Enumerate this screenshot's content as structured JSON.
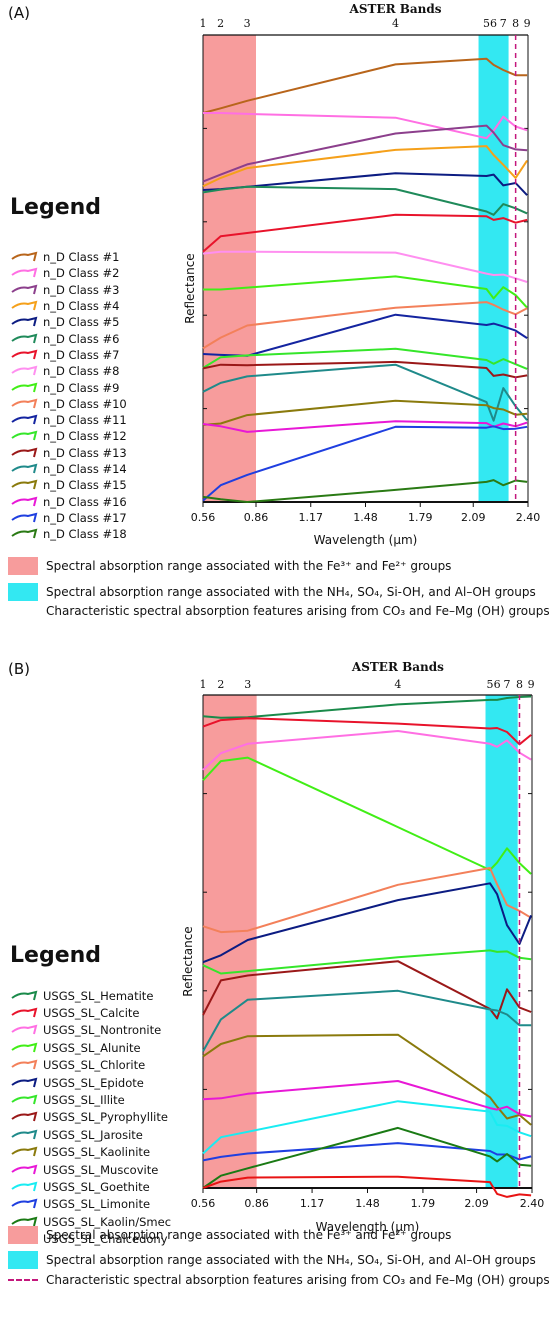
{
  "panels": [
    {
      "id": "A",
      "panel_label": "(A)",
      "legend_title": "Legend",
      "band_title": "ASTER Bands",
      "xlabel": "Wavelength (μm)",
      "ylabel": "Reflectance",
      "absorption_fe": "Spectral absorption range associated with the Fe³⁺ and Fe²⁺ groups",
      "absorption_nh4": "Spectral absorption range associated with the NH₄, SO₄, Si-OH, and Al–OH groups",
      "absorption_co3": "Characteristic spectral absorption features arising from CO₃ and Fe–Mg (OH) groups"
    },
    {
      "id": "B",
      "panel_label": "(B)",
      "legend_title": "Legend",
      "band_title": "ASTER Bands",
      "xlabel": "Wavelength (μm)",
      "ylabel": "Reflectance",
      "absorption_fe": "Spectral absorption range associated with the Fe³⁺ and Fe²⁺ groups",
      "absorption_nh4": "Spectral absorption range associated with the NH₄, SO₄, Si-OH, and Al–OH groups",
      "absorption_co3": "Characteristic spectral absorption features arising from CO₃ and Fe–Mg (OH) groups"
    }
  ],
  "chart_data": [
    {
      "type": "line",
      "title": "",
      "band_axis_title": "ASTER Bands",
      "xlabel": "Wavelength (μm)",
      "ylabel": "Reflectance",
      "x_ticks": [
        "0.56",
        "0.86",
        "1.17",
        "1.48",
        "1.79",
        "2.09",
        "2.40"
      ],
      "xlim": [
        0.56,
        2.4
      ],
      "ylim": [
        0,
        100
      ],
      "band_numbers": [
        "1",
        "2",
        "3",
        "4",
        "5",
        "6",
        "7",
        "8",
        "9"
      ],
      "band_centers": [
        0.56,
        0.66,
        0.81,
        1.65,
        2.165,
        2.205,
        2.26,
        2.33,
        2.395
      ],
      "fe_range": [
        0.56,
        0.86
      ],
      "nh4_range": [
        2.12,
        2.29
      ],
      "co3_line": 2.33,
      "series": [
        {
          "name": "n_D Class #1",
          "color": "#b8651b",
          "values": [
            83.3,
            84.3,
            85.9,
            93.7,
            94.9,
            93.6,
            92.5,
            91.4,
            91.4
          ]
        },
        {
          "name": "n_D Class #2",
          "color": "#ff6fe3",
          "values": [
            83.3,
            83.3,
            83.1,
            82.3,
            77.9,
            79.5,
            82.5,
            80.4,
            79.6
          ]
        },
        {
          "name": "n_D Class #3",
          "color": "#8c3f8c",
          "values": [
            68.6,
            70.1,
            72.3,
            78.9,
            80.6,
            79.1,
            76.4,
            75.5,
            75.3
          ]
        },
        {
          "name": "n_D Class #4",
          "color": "#f5a01a",
          "values": [
            67.6,
            69.4,
            71.5,
            75.4,
            76.2,
            74.3,
            72.2,
            69.4,
            73.1
          ]
        },
        {
          "name": "n_D Class #5",
          "color": "#0c1c82",
          "values": [
            66.8,
            67.0,
            67.5,
            70.4,
            69.8,
            70.1,
            67.8,
            68.3,
            65.7
          ]
        },
        {
          "name": "n_D Class #6",
          "color": "#1f8a5a",
          "values": [
            66.3,
            66.9,
            67.5,
            67.0,
            62.2,
            61.5,
            63.8,
            62.9,
            61.8
          ]
        },
        {
          "name": "n_D Class #7",
          "color": "#e8132b",
          "values": [
            53.6,
            56.9,
            57.6,
            61.5,
            61.2,
            60.4,
            60.8,
            59.8,
            60.4
          ]
        },
        {
          "name": "n_D Class #8",
          "color": "#ff8ff0",
          "values": [
            53.2,
            53.6,
            53.6,
            53.4,
            48.9,
            48.6,
            48.7,
            47.9,
            47.1
          ]
        },
        {
          "name": "n_D Class #9",
          "color": "#41ee16",
          "values": [
            45.5,
            45.5,
            45.9,
            48.3,
            45.6,
            43.6,
            46.0,
            44.3,
            41.6
          ]
        },
        {
          "name": "n_D Class #10",
          "color": "#f3805a",
          "values": [
            32.9,
            35.2,
            37.8,
            41.6,
            42.8,
            42.2,
            41.2,
            40.2,
            41.5
          ]
        },
        {
          "name": "n_D Class #11",
          "color": "#1424a0",
          "values": [
            31.7,
            31.5,
            31.3,
            40.1,
            37.9,
            38.2,
            37.6,
            36.7,
            35.1
          ]
        },
        {
          "name": "n_D Class #12",
          "color": "#35e62a",
          "values": [
            28.7,
            31.0,
            31.4,
            32.8,
            30.4,
            29.6,
            30.6,
            29.5,
            28.5
          ]
        },
        {
          "name": "n_D Class #13",
          "color": "#9a1818",
          "values": [
            28.6,
            29.4,
            29.3,
            30.0,
            28.7,
            27.0,
            27.3,
            26.7,
            27.1
          ]
        },
        {
          "name": "n_D Class #14",
          "color": "#1f8a8a",
          "values": [
            23.6,
            25.5,
            26.9,
            29.4,
            21.4,
            17.4,
            24.4,
            20.5,
            17.5
          ]
        },
        {
          "name": "n_D Class #15",
          "color": "#8a7a0c",
          "values": [
            16.5,
            16.8,
            18.6,
            21.7,
            20.7,
            20.1,
            19.8,
            18.7,
            18.9
          ]
        },
        {
          "name": "n_D Class #16",
          "color": "#e818d6",
          "values": [
            16.7,
            16.2,
            15.0,
            17.3,
            16.9,
            16.1,
            16.8,
            16.2,
            17.0
          ]
        },
        {
          "name": "n_D Class #17",
          "color": "#1f3fe0",
          "values": [
            0.3,
            3.6,
            5.8,
            16.1,
            15.9,
            16.2,
            15.6,
            15.7,
            16.1
          ]
        },
        {
          "name": "n_D Class #18",
          "color": "#2a7a14",
          "values": [
            1.1,
            0.6,
            0.0,
            2.6,
            4.3,
            4.7,
            3.6,
            4.6,
            4.3
          ]
        }
      ]
    },
    {
      "type": "line",
      "title": "",
      "band_axis_title": "ASTER Bands",
      "xlabel": "Wavelength (μm)",
      "ylabel": "Reflectance",
      "x_ticks": [
        "0.56",
        "0.86",
        "1.17",
        "1.48",
        "1.79",
        "2.09",
        "2.40"
      ],
      "xlim": [
        0.56,
        2.4
      ],
      "ylim": [
        0,
        100
      ],
      "band_numbers": [
        "1",
        "2",
        "3",
        "4",
        "5",
        "6",
        "7",
        "8",
        "9"
      ],
      "band_centers": [
        0.56,
        0.66,
        0.81,
        1.65,
        2.165,
        2.205,
        2.26,
        2.33,
        2.395
      ],
      "fe_range": [
        0.56,
        0.86
      ],
      "nh4_range": [
        2.14,
        2.32
      ],
      "co3_line": 2.33,
      "series": [
        {
          "name": "USGS_SL_Hematite",
          "color": "#1a8a4a",
          "values": [
            95.7,
            95.4,
            95.5,
            98.1,
            99.0,
            99.0,
            99.4,
            99.6,
            99.7
          ]
        },
        {
          "name": "USGS_SL_Calcite",
          "color": "#e8132b",
          "values": [
            93.6,
            94.9,
            95.3,
            94.2,
            93.2,
            93.3,
            92.5,
            90.0,
            91.9
          ]
        },
        {
          "name": "USGS_SL_Nontronite",
          "color": "#ff6fe3",
          "values": [
            84.8,
            88.2,
            90.1,
            92.7,
            90.1,
            89.5,
            90.8,
            88.3,
            86.9
          ]
        },
        {
          "name": "USGS_SL_Alunite",
          "color": "#41ee16",
          "values": [
            82.7,
            86.6,
            87.3,
            73.2,
            64.5,
            66.0,
            68.9,
            65.9,
            63.7
          ]
        },
        {
          "name": "USGS_SL_Chlorite",
          "color": "#f3805a",
          "values": [
            53.1,
            51.9,
            52.2,
            61.5,
            64.9,
            61.6,
            57.4,
            56.2,
            54.8
          ]
        },
        {
          "name": "USGS_SL_Epidote",
          "color": "#0c1c82",
          "values": [
            45.8,
            47.2,
            50.3,
            58.4,
            61.8,
            59.6,
            53.3,
            49.5,
            55.3
          ]
        },
        {
          "name": "USGS_SL_Illite",
          "color": "#35e62a",
          "values": [
            45.2,
            43.5,
            44.0,
            46.8,
            48.2,
            47.9,
            48.0,
            46.7,
            46.4
          ]
        },
        {
          "name": "USGS_SL_Pyrophyllite",
          "color": "#9a1818",
          "values": [
            35.1,
            42.1,
            43.1,
            46.0,
            36.3,
            34.4,
            40.3,
            36.6,
            35.7
          ]
        },
        {
          "name": "USGS_SL_Jarosite",
          "color": "#1f8a8a",
          "values": [
            27.7,
            34.2,
            38.2,
            40.0,
            36.2,
            36.0,
            35.2,
            33.0,
            33.0
          ]
        },
        {
          "name": "USGS_SL_Kaolinite",
          "color": "#8a7a0c",
          "values": [
            26.7,
            29.2,
            30.8,
            31.1,
            18.4,
            16.5,
            14.1,
            14.8,
            12.8
          ]
        },
        {
          "name": "USGS_SL_Muscovite",
          "color": "#e818d6",
          "values": [
            18.0,
            18.2,
            19.1,
            21.7,
            16.2,
            15.9,
            16.5,
            15.0,
            14.5
          ]
        },
        {
          "name": "USGS_SL_Goethite",
          "color": "#19ecf2",
          "values": [
            7.0,
            10.3,
            11.4,
            17.6,
            15.5,
            12.8,
            12.6,
            11.3,
            10.5
          ]
        },
        {
          "name": "USGS_SL_Limonite",
          "color": "#1f3fe0",
          "values": [
            5.6,
            6.3,
            7.0,
            9.1,
            7.5,
            6.8,
            6.8,
            5.8,
            6.4
          ]
        },
        {
          "name": "USGS_SL_Kaolin/Smec",
          "color": "#1a7a14",
          "values": [
            0.0,
            2.5,
            4.0,
            12.2,
            6.4,
            5.4,
            6.9,
            4.7,
            4.5
          ]
        },
        {
          "name": "USGS_SL_Chalcedony",
          "color": "#e81414",
          "values": [
            0.0,
            1.3,
            2.1,
            2.3,
            1.2,
            -1.2,
            -1.8,
            -1.3,
            -1.5
          ]
        }
      ]
    }
  ]
}
